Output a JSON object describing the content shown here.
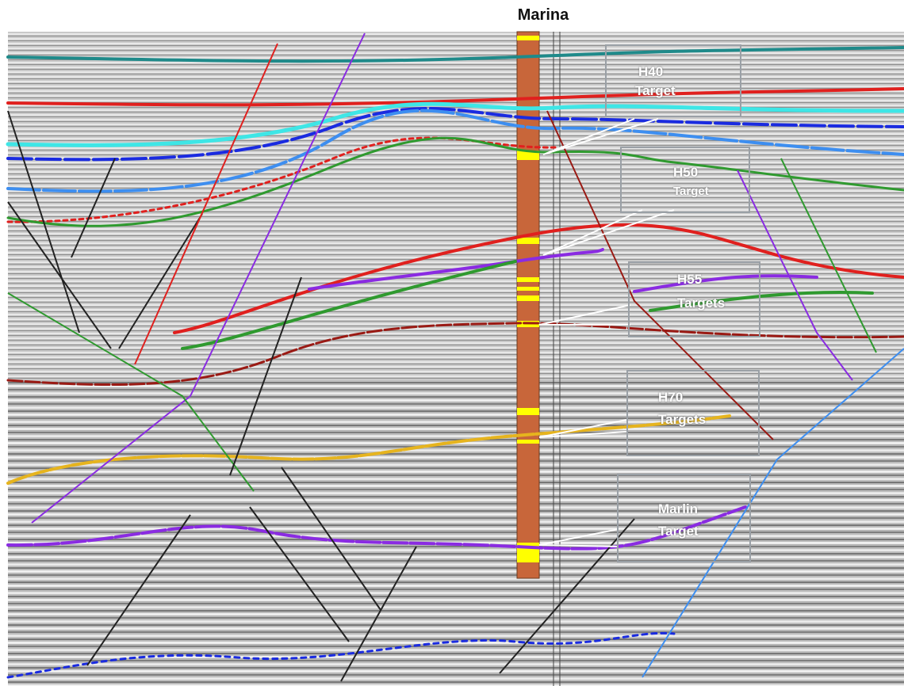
{
  "well": {
    "name": "Marina"
  },
  "callouts": [
    {
      "line1": "H40",
      "line2": "Target"
    },
    {
      "line1": "H50",
      "line2": "Target"
    },
    {
      "line1": "H55",
      "line2": "Targets"
    },
    {
      "line1": "H70",
      "line2": "Targets"
    },
    {
      "line1": "Marlin",
      "line2": "Target"
    }
  ],
  "horizon_colors": {
    "teal": "#1f8a8a",
    "red": "#e0201e",
    "cyan": "#3ee6e6",
    "blue": "#1a2be0",
    "light_blue": "#3d8ef0",
    "green": "#2f9a2f",
    "dark_red": "#9a1a14",
    "yellow": "#e6b41e",
    "purple": "#8a2be2"
  },
  "well_colors": {
    "log": "#c8663a",
    "target_zone": "#ffff00"
  }
}
